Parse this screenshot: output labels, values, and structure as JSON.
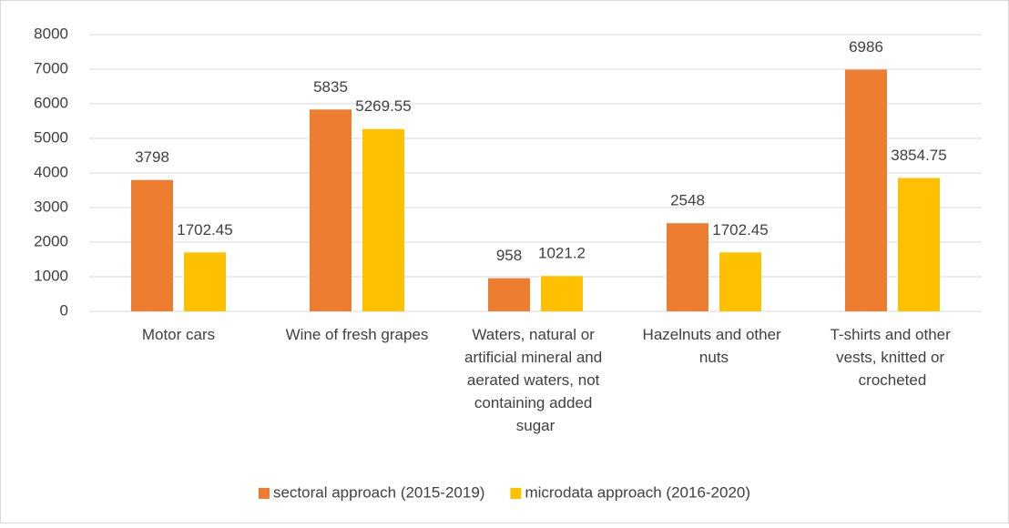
{
  "chart_data": {
    "type": "bar",
    "categories": [
      "Motor cars",
      "Wine of fresh grapes",
      "Waters, natural or artificial mineral and aerated waters, not containing added sugar",
      "Hazelnuts and other nuts",
      "T-shirts and other vests, knitted or crocheted"
    ],
    "series": [
      {
        "name": "sectoral approach (2015-2019)",
        "color": "#ed7d31",
        "values": [
          3798,
          5835,
          958,
          2548,
          6986
        ]
      },
      {
        "name": "microdata approach (2016-2020)",
        "color": "#ffc000",
        "values": [
          1702.45,
          5269.55,
          1021.2,
          1702.45,
          3854.75
        ]
      }
    ],
    "ylim": [
      0,
      8000
    ],
    "yticks": [
      0,
      1000,
      2000,
      3000,
      4000,
      5000,
      6000,
      7000,
      8000
    ],
    "grid": true,
    "legend": "bottom"
  }
}
